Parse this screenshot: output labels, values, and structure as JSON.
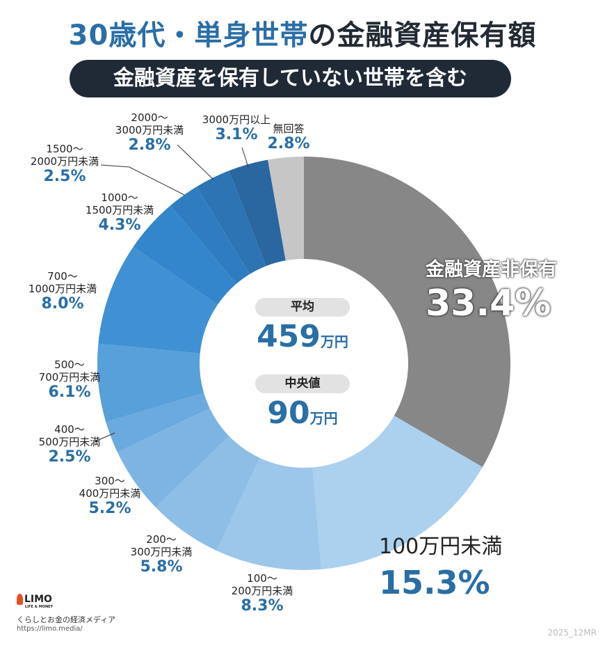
{
  "title": {
    "highlight": "30歳代・単身世帯",
    "rest": "の金融資産保有額"
  },
  "subtitle": "金融資産を保有していない世帯を含む",
  "center": {
    "avg_label": "平均",
    "avg_value": "459",
    "avg_unit": "万円",
    "median_label": "中央値",
    "median_value": "90",
    "median_unit": "万円"
  },
  "chart_data": {
    "type": "pie",
    "donut": true,
    "title": "30歳代・単身世帯の金融資産保有額",
    "unit": "%",
    "slices": [
      {
        "name": "金融資産非保有",
        "value": 33.4,
        "label": "33.4%",
        "color": "#878787"
      },
      {
        "name": "100万円未満",
        "value": 15.3,
        "label": "15.3%",
        "color": "#acd1ee"
      },
      {
        "name_top": "100〜",
        "name": "200万円未満",
        "value": 8.3,
        "label": "8.3%",
        "color": "#9dc7ea"
      },
      {
        "name_top": "200〜",
        "name": "300万円未満",
        "value": 5.8,
        "label": "5.8%",
        "color": "#8dbee6"
      },
      {
        "name_top": "300〜",
        "name": "400万円未満",
        "value": 5.2,
        "label": "5.2%",
        "color": "#7db4e2"
      },
      {
        "name_top": "400〜",
        "name": "500万円未満",
        "value": 2.5,
        "label": "2.5%",
        "color": "#6aaade"
      },
      {
        "name_top": "500〜",
        "name": "700万円未満",
        "value": 6.1,
        "label": "6.1%",
        "color": "#57a0da"
      },
      {
        "name_top": "700〜",
        "name": "1000万円未満",
        "value": 8.0,
        "label": "8.0%",
        "color": "#3f91d3"
      },
      {
        "name_top": "1000〜",
        "name": "1500万円未満",
        "value": 4.3,
        "label": "4.3%",
        "color": "#3486cc"
      },
      {
        "name_top": "1500〜",
        "name": "2000万円未満",
        "value": 2.5,
        "label": "2.5%",
        "color": "#2f7dc0"
      },
      {
        "name_top": "2000〜",
        "name": "3000万円未満",
        "value": 2.8,
        "label": "2.8%",
        "color": "#2c74b3"
      },
      {
        "name": "3000万円以上",
        "value": 3.1,
        "label": "3.1%",
        "color": "#2a669f"
      },
      {
        "name": "無回答",
        "value": 2.8,
        "label": "2.8%",
        "color": "#c6c6c6"
      }
    ]
  },
  "footer": {
    "logo": "LIMO",
    "logo_sub": "LIFE & MONEY",
    "tagline": "くらしとお金の経済メディア",
    "url": "https://limo.media/",
    "code": "2025_12MR"
  }
}
